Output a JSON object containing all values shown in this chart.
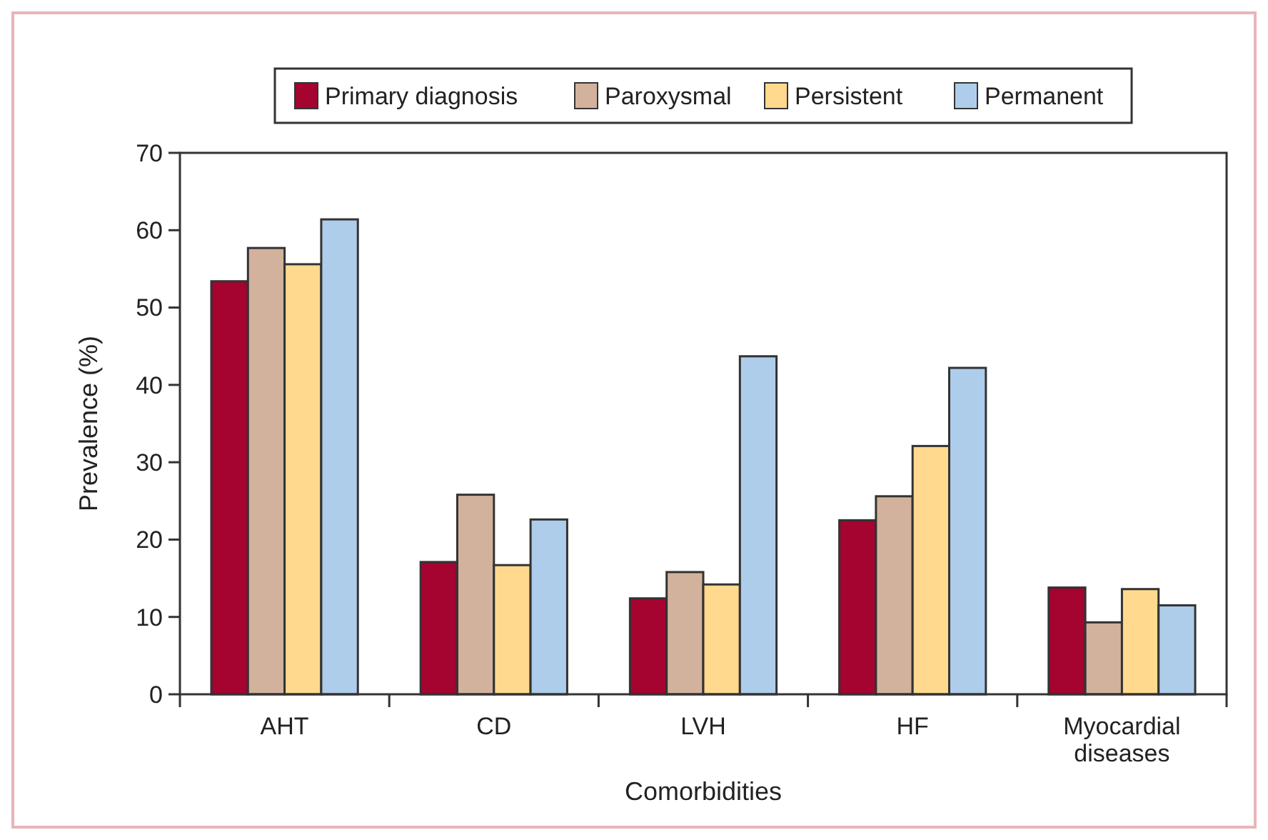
{
  "chart_data": {
    "type": "bar",
    "xlabel": "Comorbidities",
    "ylabel": "Prevalence (%)",
    "categories": [
      "AHT",
      "CD",
      "LVH",
      "HF",
      "Myocardial diseases"
    ],
    "series": [
      {
        "name": "Primary diagnosis",
        "color": "#a50330",
        "values": [
          53.4,
          17.1,
          12.4,
          22.5,
          13.8
        ]
      },
      {
        "name": "Paroxysmal",
        "color": "#d2b29c",
        "values": [
          57.7,
          25.8,
          15.8,
          25.6,
          9.3
        ]
      },
      {
        "name": "Persistent",
        "color": "#fed98e",
        "values": [
          55.6,
          16.7,
          14.2,
          32.1,
          13.6
        ]
      },
      {
        "name": "Permanent",
        "color": "#aecdea",
        "values": [
          61.4,
          22.6,
          43.7,
          42.2,
          11.5
        ]
      }
    ],
    "ylim": [
      0,
      70
    ],
    "yticks": [
      0,
      10,
      20,
      30,
      40,
      50,
      60,
      70
    ],
    "grid": false,
    "legend": "top"
  }
}
